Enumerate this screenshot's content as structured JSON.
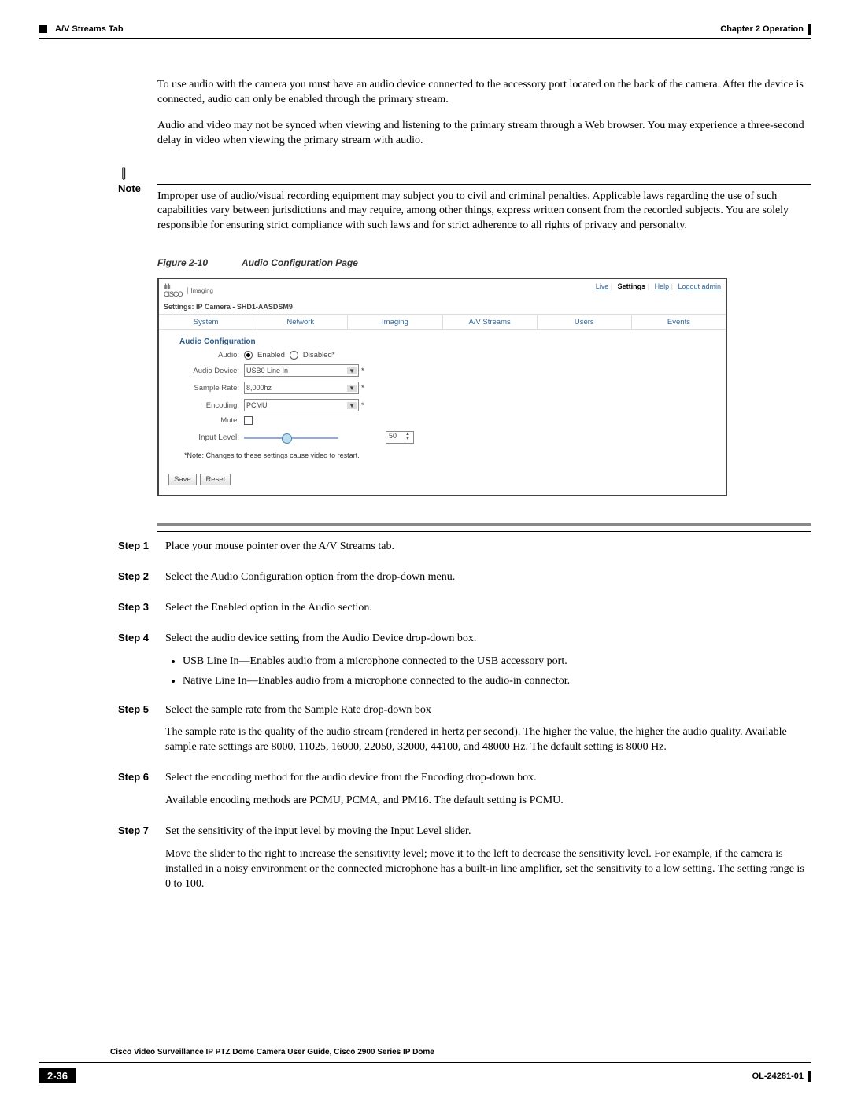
{
  "header": {
    "left": "A/V Streams Tab",
    "right": "Chapter 2    Operation"
  },
  "intro": {
    "p1": "To use audio with the camera you must have an audio device connected to the accessory port located on the back of the camera. After the device is connected, audio can only be enabled through the primary stream.",
    "p2": "Audio and video may not be synced when viewing and listening to the primary stream through a Web browser. You may experience a three-second delay in video when viewing the primary stream with audio."
  },
  "note": {
    "label": "Note",
    "text": "Improper use of audio/visual recording equipment may subject you to civil and criminal penalties. Applicable laws regarding the use of such capabilities vary between jurisdictions and may require, among other things, express written consent from the recorded subjects. You are solely responsible for ensuring strict compliance with such laws and for strict adherence to all rights of privacy and personalty."
  },
  "figure": {
    "label": "Figure 2-10",
    "title": "Audio Configuration Page"
  },
  "screenshot": {
    "brand": "CISCO",
    "brand_sub": "Imaging",
    "links": {
      "live": "Live",
      "settings": "Settings",
      "help": "Help",
      "logout": "Logout admin"
    },
    "settings_line": "Settings: IP Camera - SHD1-AASDSM9",
    "tabs": [
      "System",
      "Network",
      "Imaging",
      "A/V Streams",
      "Users",
      "Events"
    ],
    "fieldset_label": "Audio Configuration",
    "audio_label": "Audio:",
    "enabled": "Enabled",
    "disabled": "Disabled*",
    "device_label": "Audio Device:",
    "device_value": "USB0 Line In",
    "rate_label": "Sample Rate:",
    "rate_value": "8,000hz",
    "enc_label": "Encoding:",
    "enc_value": "PCMU",
    "mute_label": "Mute:",
    "input_label": "Input Level:",
    "input_value": "50",
    "note": "*Note: Changes to these settings cause video to restart.",
    "save": "Save",
    "reset": "Reset"
  },
  "steps": [
    {
      "label": "Step 1",
      "paras": [
        "Place your mouse pointer over the A/V Streams tab."
      ]
    },
    {
      "label": "Step 2",
      "paras": [
        "Select the Audio Configuration option from the drop-down menu."
      ]
    },
    {
      "label": "Step 3",
      "paras": [
        "Select the Enabled option in the Audio section."
      ]
    },
    {
      "label": "Step 4",
      "paras": [
        "Select the audio device setting from the Audio Device drop-down box."
      ],
      "bullets": [
        "USB Line In—Enables audio from a microphone connected to the USB accessory port.",
        "Native Line In—Enables audio from a microphone connected to the audio-in connector."
      ]
    },
    {
      "label": "Step 5",
      "paras": [
        "Select the sample rate from the Sample Rate drop-down box",
        "The sample rate is the quality of the audio stream (rendered in hertz per second). The higher the value, the higher the audio quality. Available sample rate settings are 8000, 11025, 16000, 22050, 32000, 44100, and 48000 Hz. The default setting is 8000 Hz."
      ]
    },
    {
      "label": "Step 6",
      "paras": [
        "Select the encoding method for the audio device from the Encoding drop-down box.",
        "Available encoding methods are PCMU, PCMA, and PM16. The default setting is PCMU."
      ]
    },
    {
      "label": "Step 7",
      "paras": [
        "Set the sensitivity of the input level by moving the Input Level slider.",
        "Move the slider to the right to increase the sensitivity level; move it to the left to decrease the sensitivity level. For example, if the camera is installed in a noisy environment or the connected microphone has a built-in line amplifier, set the sensitivity to a low setting. The setting range is 0 to 100."
      ]
    }
  ],
  "footer": {
    "title": "Cisco Video Surveillance IP PTZ Dome Camera User Guide, Cisco 2900 Series IP Dome",
    "page": "2-36",
    "doc": "OL-24281-01"
  }
}
